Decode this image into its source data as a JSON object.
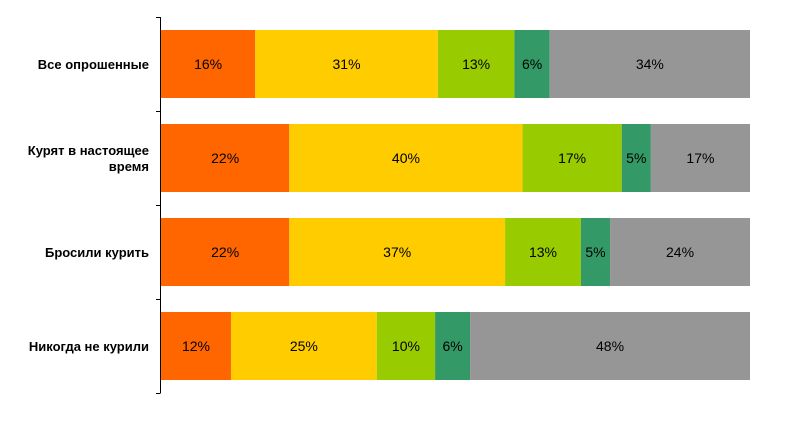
{
  "chart_data": {
    "type": "bar",
    "orientation": "horizontal",
    "stacked": true,
    "categories": [
      "Все опрошенные",
      "Курят в настоящее время",
      "Бросили курить",
      "Никогда не курили"
    ],
    "category_label_lines": [
      [
        "Все опрошенные"
      ],
      [
        "Курят в настоящее",
        "время"
      ],
      [
        "Бросили курить"
      ],
      [
        "Никогда не курили"
      ]
    ],
    "series": [
      {
        "color": "#ff6600",
        "values": [
          16,
          22,
          22,
          12
        ],
        "labels": [
          "16%",
          "22%",
          "22%",
          "12%"
        ]
      },
      {
        "color": "#ffcc00",
        "values": [
          31,
          40,
          37,
          25
        ],
        "labels": [
          "31%",
          "40%",
          "37%",
          "25%"
        ]
      },
      {
        "color": "#99cc00",
        "values": [
          13,
          17,
          13,
          10
        ],
        "labels": [
          "13%",
          "17%",
          "13%",
          "10%"
        ]
      },
      {
        "color": "#339966",
        "values": [
          6,
          5,
          5,
          6
        ],
        "labels": [
          "6%",
          "5%",
          "5%",
          "6%"
        ]
      },
      {
        "color": "#969696",
        "values": [
          34,
          17,
          24,
          48
        ],
        "labels": [
          "34%",
          "17%",
          "24%",
          "48%"
        ]
      }
    ],
    "grid": false,
    "legend": "none"
  }
}
